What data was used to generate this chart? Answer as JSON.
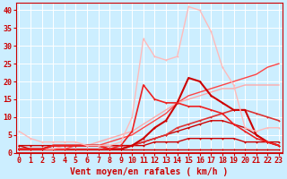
{
  "title": "",
  "xlabel": "Vent moyen/en rafales ( km/h )",
  "ylabel": "",
  "bg_color": "#cceeff",
  "grid_color": "#ffffff",
  "x": [
    0,
    1,
    2,
    3,
    4,
    5,
    6,
    7,
    8,
    9,
    10,
    11,
    12,
    13,
    14,
    15,
    16,
    17,
    18,
    19,
    20,
    21,
    22,
    23
  ],
  "lines": [
    {
      "y": [
        1,
        1,
        1,
        1,
        1,
        1,
        1,
        1,
        1,
        1,
        1,
        1,
        1,
        1,
        1,
        1,
        1,
        1,
        1,
        1,
        1,
        1,
        1,
        1
      ],
      "color": "#cc0000",
      "lw": 1.0,
      "marker": "+"
    },
    {
      "y": [
        2,
        1,
        1,
        2,
        2,
        2,
        2,
        2,
        2,
        2,
        2,
        2,
        3,
        3,
        3,
        4,
        4,
        4,
        4,
        4,
        3,
        3,
        3,
        3
      ],
      "color": "#cc0000",
      "lw": 1.0,
      "marker": "+"
    },
    {
      "y": [
        2,
        2,
        2,
        2,
        2,
        2,
        2,
        2,
        2,
        2,
        2,
        3,
        4,
        5,
        6,
        7,
        8,
        9,
        9,
        8,
        7,
        5,
        3,
        2
      ],
      "color": "#cc0000",
      "lw": 1.0,
      "marker": "+"
    },
    {
      "y": [
        1,
        1,
        1,
        1,
        1,
        1,
        1,
        1,
        1,
        1,
        2,
        3,
        4,
        5,
        7,
        8,
        9,
        10,
        11,
        12,
        12,
        11,
        10,
        9
      ],
      "color": "#dd3333",
      "lw": 1.2,
      "marker": "+"
    },
    {
      "y": [
        1,
        1,
        1,
        1,
        1,
        2,
        2,
        2,
        3,
        4,
        5,
        7,
        9,
        11,
        14,
        16,
        17,
        18,
        19,
        20,
        21,
        22,
        24,
        25
      ],
      "color": "#ff4444",
      "lw": 1.0,
      "marker": null
    },
    {
      "y": [
        1,
        1,
        1,
        1,
        2,
        2,
        2,
        3,
        4,
        5,
        6,
        8,
        10,
        12,
        14,
        15,
        16,
        17,
        18,
        18,
        19,
        19,
        19,
        19
      ],
      "color": "#ffaaaa",
      "lw": 1.0,
      "marker": null
    },
    {
      "y": [
        1,
        1,
        1,
        2,
        2,
        2,
        2,
        2,
        1,
        1,
        2,
        4,
        7,
        9,
        14,
        21,
        20,
        16,
        14,
        12,
        12,
        5,
        3,
        2
      ],
      "color": "#cc0000",
      "lw": 1.5,
      "marker": "+"
    },
    {
      "y": [
        1,
        1,
        1,
        2,
        2,
        2,
        2,
        2,
        1,
        2,
        6,
        19,
        15,
        14,
        14,
        13,
        13,
        12,
        11,
        8,
        6,
        4,
        3,
        2
      ],
      "color": "#ee2222",
      "lw": 1.2,
      "marker": "+"
    },
    {
      "y": [
        6,
        4,
        3,
        3,
        3,
        3,
        2,
        2,
        2,
        3,
        10,
        32,
        27,
        26,
        27,
        41,
        40,
        34,
        24,
        19,
        7,
        6,
        7,
        7
      ],
      "color": "#ffbbbb",
      "lw": 1.0,
      "marker": "+"
    }
  ],
  "xlim": [
    -0.3,
    23.3
  ],
  "ylim": [
    0,
    42
  ],
  "yticks": [
    0,
    5,
    10,
    15,
    20,
    25,
    30,
    35,
    40
  ],
  "xticks": [
    0,
    1,
    2,
    3,
    4,
    5,
    6,
    7,
    8,
    9,
    10,
    11,
    12,
    13,
    14,
    15,
    16,
    17,
    18,
    19,
    20,
    21,
    22,
    23
  ],
  "tick_color": "#cc0000",
  "xlabel_color": "#cc0000",
  "xlabel_fontsize": 7,
  "tick_fontsize": 6
}
